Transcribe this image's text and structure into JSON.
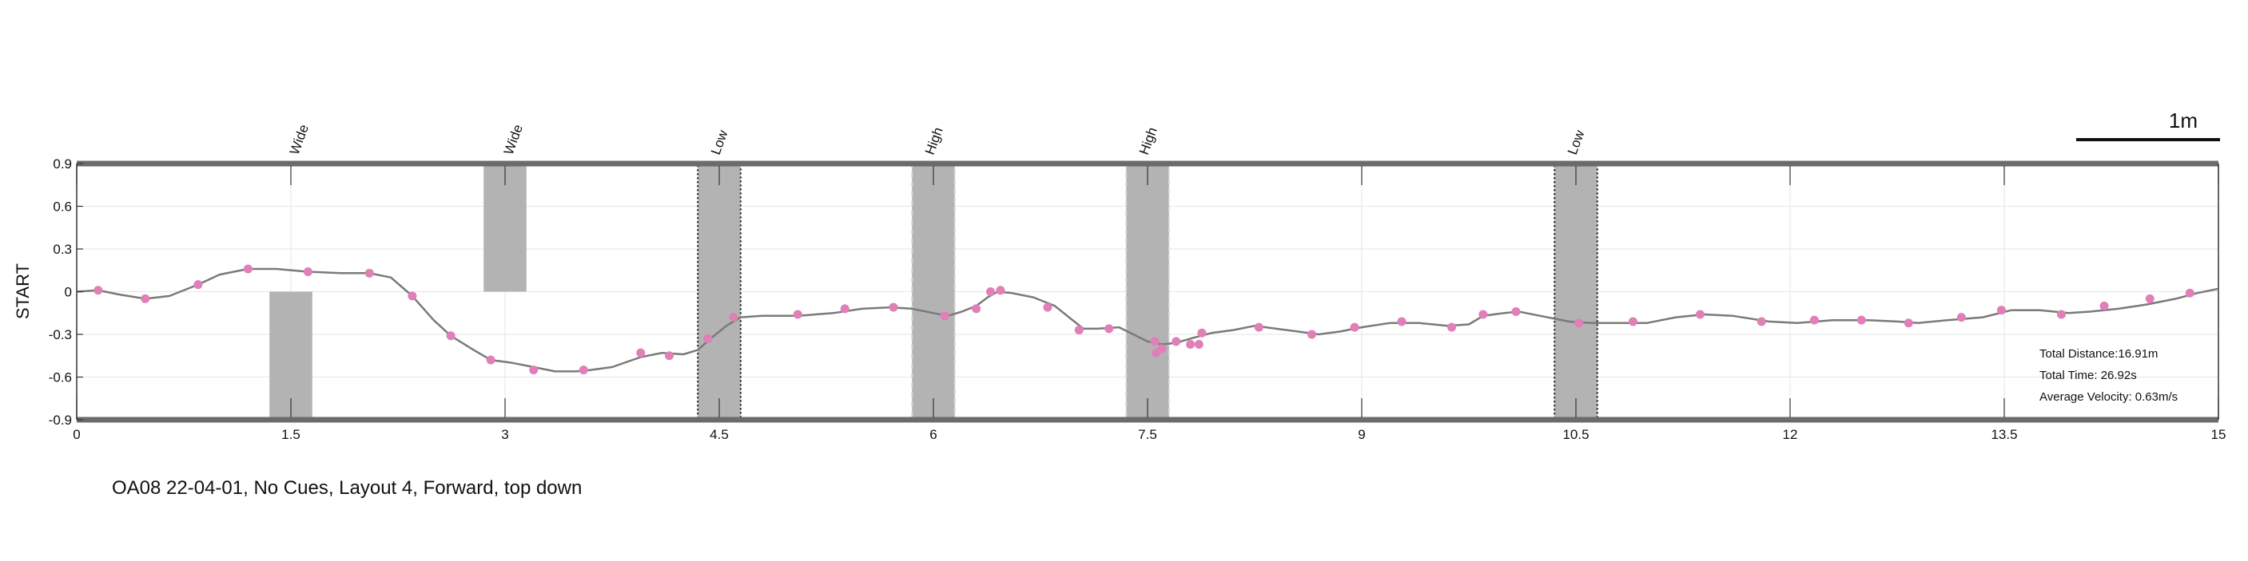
{
  "caption": "OA08 22-04-01, No Cues, Layout 4, Forward, top down",
  "y_side_label": "START",
  "scale_bar": {
    "label": "1m",
    "length_m": 1
  },
  "stats": {
    "distance": "Total Distance:16.91m",
    "time": "Total Time: 26.92s",
    "velocity": "Average Velocity: 0.63m/s"
  },
  "colors": {
    "path": "#7a7a7a",
    "marker": "#e07fb8",
    "obstacle": "#b3b3b3",
    "border": "#6b6b6b",
    "grid": "#e6e6e6"
  },
  "chart_data": {
    "type": "line",
    "xlim": [
      0,
      15
    ],
    "ylim": [
      -0.9,
      0.9
    ],
    "xticks": [
      0,
      1.5,
      3,
      4.5,
      6,
      7.5,
      9,
      10.5,
      12,
      13.5,
      15
    ],
    "xtick_labels": [
      "0",
      "1.5",
      "3",
      "4.5",
      "6",
      "7.5",
      "9",
      "10.5",
      "12",
      "13.5",
      "15"
    ],
    "yticks": [
      0.9,
      0.6,
      0.3,
      0,
      -0.3,
      -0.6,
      -0.9
    ],
    "ytick_labels": [
      "0.9",
      "0.6",
      "0.3",
      "0",
      "-0.3",
      "-0.6",
      "-0.9"
    ],
    "grid": true,
    "obstacles": [
      {
        "label": "Wide",
        "x": [
          1.35,
          1.65
        ],
        "y": [
          -0.9,
          0
        ],
        "style": "plain",
        "label_x": 1.55
      },
      {
        "label": "Wide",
        "x": [
          2.85,
          3.15
        ],
        "y": [
          0,
          0.9
        ],
        "style": "plain",
        "label_x": 3.05
      },
      {
        "label": "Low",
        "x": [
          4.35,
          4.65
        ],
        "y": [
          -0.9,
          0.9
        ],
        "style": "dotted",
        "label_x": 4.5
      },
      {
        "label": "High",
        "x": [
          5.85,
          6.15
        ],
        "y": [
          -0.9,
          0.9
        ],
        "style": "dashed",
        "label_x": 6.0
      },
      {
        "label": "High",
        "x": [
          7.35,
          7.65
        ],
        "y": [
          -0.9,
          0.9
        ],
        "style": "dashed",
        "label_x": 7.5
      },
      {
        "label": "Low",
        "x": [
          10.35,
          10.65
        ],
        "y": [
          -0.9,
          0.9
        ],
        "style": "dotted",
        "label_x": 10.5
      }
    ],
    "path": [
      [
        0,
        0
      ],
      [
        0.15,
        0.01
      ],
      [
        0.3,
        -0.02
      ],
      [
        0.48,
        -0.05
      ],
      [
        0.65,
        -0.03
      ],
      [
        0.85,
        0.05
      ],
      [
        1.0,
        0.12
      ],
      [
        1.2,
        0.16
      ],
      [
        1.4,
        0.16
      ],
      [
        1.62,
        0.14
      ],
      [
        1.85,
        0.13
      ],
      [
        2.05,
        0.13
      ],
      [
        2.2,
        0.1
      ],
      [
        2.35,
        -0.03
      ],
      [
        2.5,
        -0.2
      ],
      [
        2.62,
        -0.31
      ],
      [
        2.78,
        -0.41
      ],
      [
        2.9,
        -0.48
      ],
      [
        3.05,
        -0.5
      ],
      [
        3.2,
        -0.53
      ],
      [
        3.35,
        -0.56
      ],
      [
        3.5,
        -0.56
      ],
      [
        3.6,
        -0.55
      ],
      [
        3.75,
        -0.53
      ],
      [
        3.95,
        -0.46
      ],
      [
        4.1,
        -0.43
      ],
      [
        4.25,
        -0.44
      ],
      [
        4.35,
        -0.41
      ],
      [
        4.45,
        -0.32
      ],
      [
        4.55,
        -0.24
      ],
      [
        4.65,
        -0.18
      ],
      [
        4.8,
        -0.17
      ],
      [
        5.05,
        -0.17
      ],
      [
        5.3,
        -0.15
      ],
      [
        5.5,
        -0.12
      ],
      [
        5.7,
        -0.11
      ],
      [
        5.85,
        -0.12
      ],
      [
        6.0,
        -0.15
      ],
      [
        6.1,
        -0.17
      ],
      [
        6.2,
        -0.14
      ],
      [
        6.3,
        -0.1
      ],
      [
        6.38,
        -0.04
      ],
      [
        6.45,
        0.0
      ],
      [
        6.55,
        -0.01
      ],
      [
        6.7,
        -0.04
      ],
      [
        6.85,
        -0.1
      ],
      [
        6.95,
        -0.18
      ],
      [
        7.05,
        -0.26
      ],
      [
        7.15,
        -0.26
      ],
      [
        7.3,
        -0.25
      ],
      [
        7.4,
        -0.3
      ],
      [
        7.5,
        -0.35
      ],
      [
        7.6,
        -0.37
      ],
      [
        7.7,
        -0.36
      ],
      [
        7.8,
        -0.33
      ],
      [
        7.95,
        -0.29
      ],
      [
        8.1,
        -0.27
      ],
      [
        8.25,
        -0.24
      ],
      [
        8.4,
        -0.26
      ],
      [
        8.55,
        -0.28
      ],
      [
        8.7,
        -0.3
      ],
      [
        8.85,
        -0.28
      ],
      [
        9.0,
        -0.25
      ],
      [
        9.2,
        -0.22
      ],
      [
        9.4,
        -0.22
      ],
      [
        9.6,
        -0.24
      ],
      [
        9.75,
        -0.23
      ],
      [
        9.85,
        -0.17
      ],
      [
        10.0,
        -0.15
      ],
      [
        10.1,
        -0.14
      ],
      [
        10.25,
        -0.17
      ],
      [
        10.45,
        -0.21
      ],
      [
        10.6,
        -0.22
      ],
      [
        10.8,
        -0.22
      ],
      [
        11.0,
        -0.22
      ],
      [
        11.2,
        -0.18
      ],
      [
        11.4,
        -0.16
      ],
      [
        11.6,
        -0.17
      ],
      [
        11.85,
        -0.21
      ],
      [
        12.05,
        -0.22
      ],
      [
        12.3,
        -0.2
      ],
      [
        12.55,
        -0.2
      ],
      [
        12.75,
        -0.21
      ],
      [
        12.9,
        -0.22
      ],
      [
        13.1,
        -0.2
      ],
      [
        13.35,
        -0.18
      ],
      [
        13.55,
        -0.13
      ],
      [
        13.75,
        -0.13
      ],
      [
        13.95,
        -0.15
      ],
      [
        14.1,
        -0.14
      ],
      [
        14.3,
        -0.12
      ],
      [
        14.5,
        -0.09
      ],
      [
        14.7,
        -0.05
      ],
      [
        14.85,
        -0.01
      ],
      [
        15.0,
        0.02
      ]
    ],
    "markers": [
      [
        0.15,
        0.01
      ],
      [
        0.48,
        -0.05
      ],
      [
        0.85,
        0.05
      ],
      [
        1.2,
        0.16
      ],
      [
        1.62,
        0.14
      ],
      [
        2.05,
        0.13
      ],
      [
        2.35,
        -0.03
      ],
      [
        2.62,
        -0.31
      ],
      [
        2.9,
        -0.48
      ],
      [
        3.2,
        -0.55
      ],
      [
        3.55,
        -0.55
      ],
      [
        3.95,
        -0.43
      ],
      [
        4.15,
        -0.45
      ],
      [
        4.42,
        -0.33
      ],
      [
        4.6,
        -0.18
      ],
      [
        5.05,
        -0.16
      ],
      [
        5.38,
        -0.12
      ],
      [
        5.72,
        -0.11
      ],
      [
        6.08,
        -0.17
      ],
      [
        6.3,
        -0.12
      ],
      [
        6.4,
        0.0
      ],
      [
        6.47,
        0.01
      ],
      [
        6.8,
        -0.11
      ],
      [
        7.02,
        -0.27
      ],
      [
        7.23,
        -0.26
      ],
      [
        7.55,
        -0.35
      ],
      [
        7.56,
        -0.43
      ],
      [
        7.6,
        -0.4
      ],
      [
        7.7,
        -0.35
      ],
      [
        7.8,
        -0.37
      ],
      [
        7.86,
        -0.37
      ],
      [
        7.88,
        -0.29
      ],
      [
        8.28,
        -0.25
      ],
      [
        8.65,
        -0.3
      ],
      [
        8.95,
        -0.25
      ],
      [
        9.28,
        -0.21
      ],
      [
        9.63,
        -0.25
      ],
      [
        9.85,
        -0.16
      ],
      [
        10.08,
        -0.14
      ],
      [
        10.52,
        -0.22
      ],
      [
        10.9,
        -0.21
      ],
      [
        11.37,
        -0.16
      ],
      [
        11.8,
        -0.21
      ],
      [
        12.17,
        -0.2
      ],
      [
        12.5,
        -0.2
      ],
      [
        12.83,
        -0.22
      ],
      [
        13.2,
        -0.18
      ],
      [
        13.48,
        -0.13
      ],
      [
        13.9,
        -0.16
      ],
      [
        14.2,
        -0.1
      ],
      [
        14.52,
        -0.05
      ],
      [
        14.8,
        -0.01
      ]
    ]
  }
}
